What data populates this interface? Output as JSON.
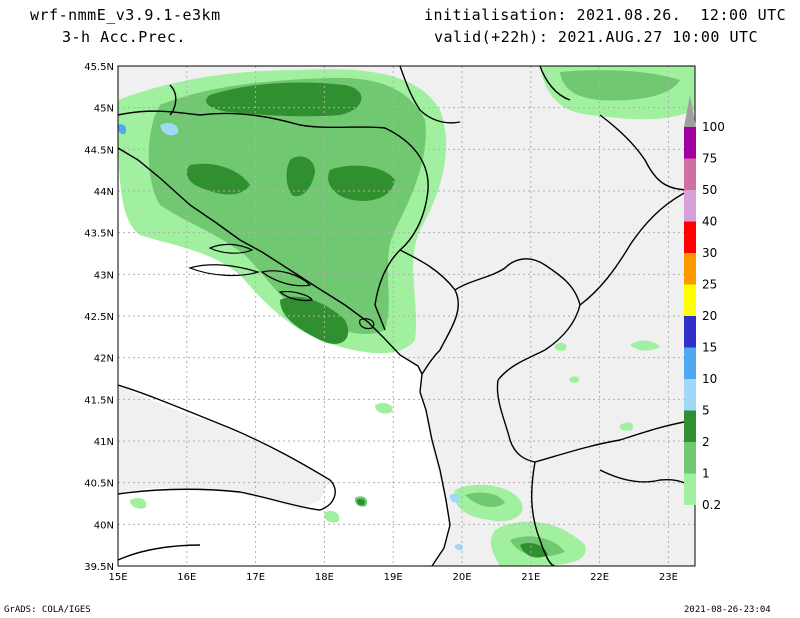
{
  "header": {
    "model": "wrf-nmmE_v3.9.1-e3km",
    "field": "3-h Acc.Prec.",
    "init": "initialisation: 2021.08.26.  12:00 UTC",
    "valid": "valid(+22h): 2021.AUG.27 10:00 UTC"
  },
  "footer": {
    "left": "GrADS: COLA/IGES",
    "right": "2021-08-26-23:04"
  },
  "axes": {
    "lat_labels": [
      "45.5N",
      "45N",
      "44.5N",
      "44N",
      "43.5N",
      "43N",
      "42.5N",
      "42N",
      "41.5N",
      "41N",
      "40.5N",
      "40N",
      "39.5N"
    ],
    "lon_labels": [
      "15E",
      "16E",
      "17E",
      "18E",
      "19E",
      "20E",
      "21E",
      "22E",
      "23E"
    ]
  },
  "colorbar": {
    "labels": [
      "100",
      "75",
      "50",
      "40",
      "30",
      "25",
      "20",
      "15",
      "10",
      "5",
      "2",
      "1",
      "0.2"
    ],
    "colors": [
      "#a0a0a0",
      "#a000a0",
      "#d070a0",
      "#d8a0d8",
      "#ff0000",
      "#ff9900",
      "#ffff00",
      "#3030c8",
      "#50a8f0",
      "#a0d8f8",
      "#309030",
      "#70c870",
      "#a0f0a0"
    ]
  },
  "map": {
    "land_color": "#f0f0f0",
    "sea_color": "#ffffff",
    "grid_color": "#b0b0b0"
  }
}
